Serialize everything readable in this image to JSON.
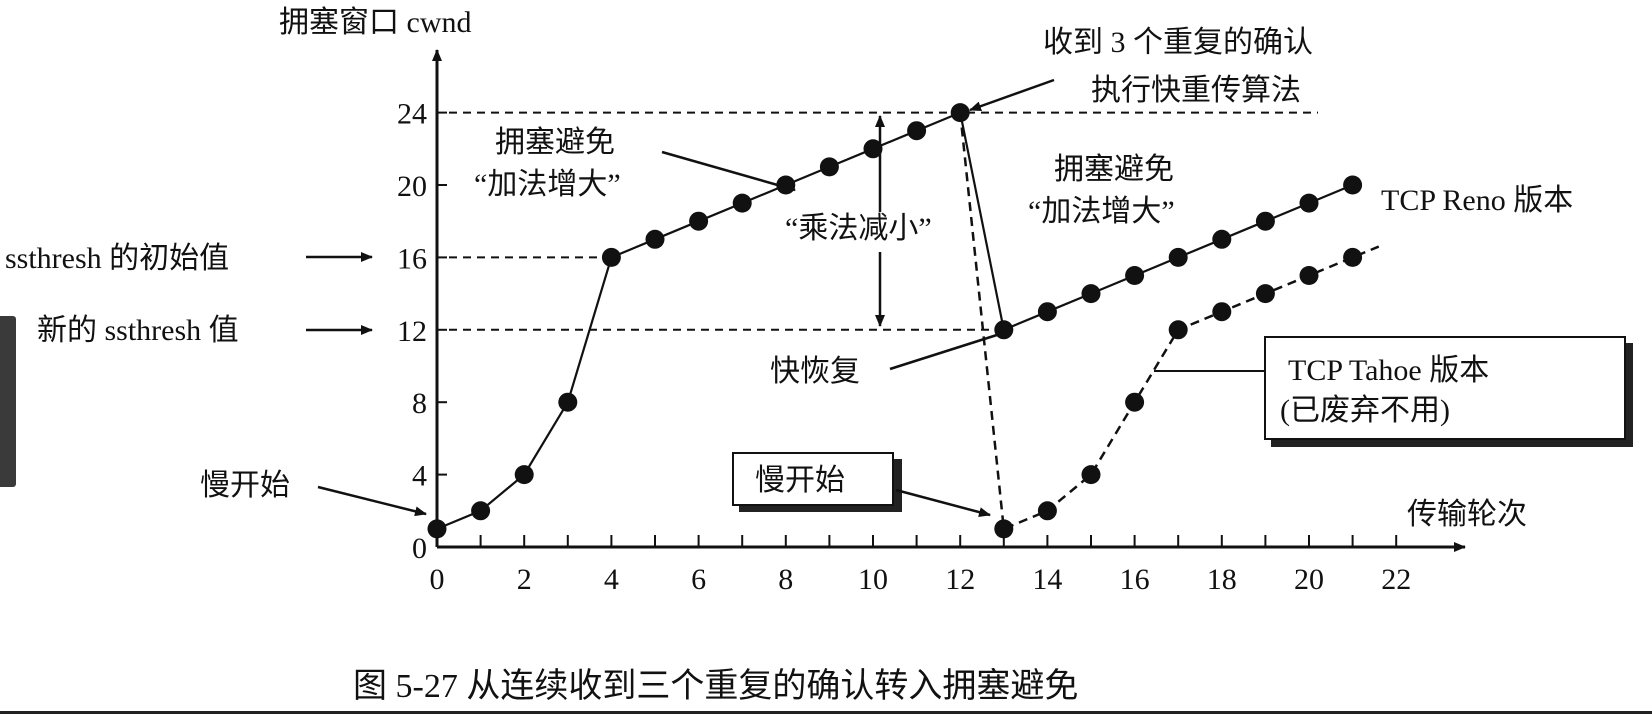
{
  "chart_data": {
    "type": "line",
    "title": "",
    "caption": "图 5-27    从连续收到三个重复的确认转入拥塞避免",
    "ylabel": "拥塞窗口 cwnd",
    "xlabel": "传输轮次",
    "xlim": [
      0,
      22
    ],
    "ylim": [
      0,
      24
    ],
    "xticks": [
      0,
      2,
      4,
      6,
      8,
      10,
      12,
      14,
      16,
      18,
      20,
      22
    ],
    "yticks": [
      0,
      4,
      8,
      12,
      16,
      20,
      24
    ],
    "grid": false,
    "reference_lines": [
      24,
      16,
      12
    ],
    "series": [
      {
        "name": "TCP Reno 版本",
        "style": "solid",
        "x": [
          0,
          1,
          2,
          3,
          4,
          5,
          6,
          7,
          8,
          9,
          10,
          11,
          12,
          13,
          14,
          15,
          16,
          17,
          18,
          19,
          20,
          21
        ],
        "y": [
          1,
          2,
          4,
          8,
          16,
          17,
          18,
          19,
          20,
          21,
          22,
          23,
          24,
          12,
          13,
          14,
          15,
          16,
          17,
          18,
          19,
          20
        ]
      },
      {
        "name": "TCP Tahoe 版本",
        "style": "dashed",
        "x": [
          12,
          13,
          14,
          15,
          16,
          17,
          18,
          19,
          20,
          21
        ],
        "y": [
          24,
          1,
          2,
          4,
          8,
          12,
          13,
          14,
          15,
          16
        ]
      }
    ],
    "annotations": {
      "triple_ack_line1": "收到 3 个重复的确认",
      "triple_ack_line2": "执行快重传算法",
      "ca1_line1": "拥塞避免",
      "ca1_line2": "“加法增大”",
      "md": "“乘法减小”",
      "ca2_line1": "拥塞避免",
      "ca2_line2": "“加法增大”",
      "reno": "TCP Reno 版本",
      "ssthresh_init": "ssthresh 的初始值",
      "ssthresh_new": "新的 ssthresh 值",
      "fast_recovery": "快恢复",
      "tahoe_line1": "TCP Tahoe 版本",
      "tahoe_line2": "(已废弃不用)",
      "slow_start1": "慢开始",
      "slow_start2": "慢开始"
    }
  }
}
